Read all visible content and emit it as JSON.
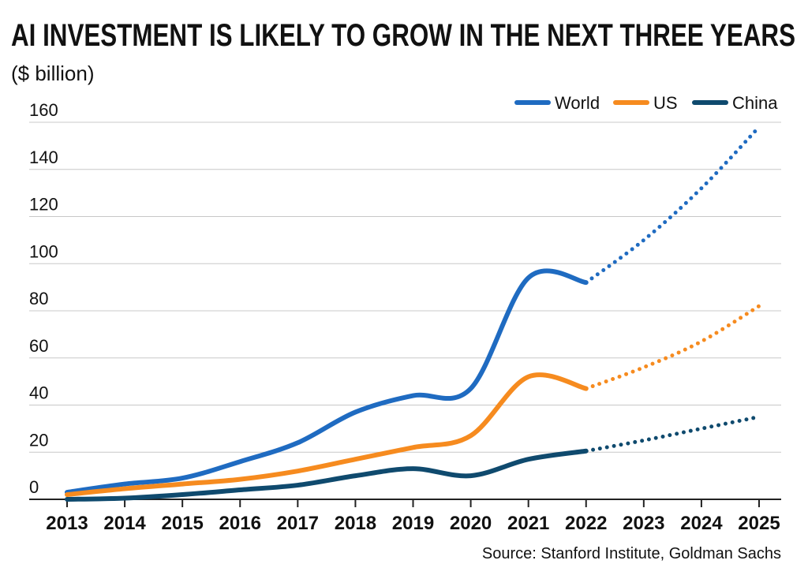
{
  "chart_data": {
    "type": "line",
    "title": "AI INVESTMENT IS LIKELY TO GROW IN THE NEXT THREE YEARS",
    "subtitle": "($ billion)",
    "source": "Source: Stanford Institute, Goldman Sachs",
    "x": [
      2013,
      2014,
      2015,
      2016,
      2017,
      2018,
      2019,
      2020,
      2021,
      2022,
      2023,
      2024,
      2025
    ],
    "xlim": [
      2013,
      2025
    ],
    "xticks": [
      2013,
      2014,
      2015,
      2016,
      2017,
      2018,
      2019,
      2020,
      2021,
      2022,
      2023,
      2024,
      2025
    ],
    "ylim": [
      0,
      160
    ],
    "yticks": [
      0,
      20,
      40,
      60,
      80,
      100,
      120,
      140,
      160
    ],
    "grid": true,
    "legend": "top-right",
    "projection_start": 2022,
    "series": [
      {
        "name": "World",
        "color": "#1f6bc1",
        "values": [
          3,
          6.5,
          9,
          16,
          24,
          37,
          44,
          47,
          94,
          92,
          110,
          132,
          158
        ]
      },
      {
        "name": "US",
        "color": "#f68b1f",
        "values": [
          2,
          4.5,
          6.5,
          8.5,
          12,
          17,
          22,
          27,
          52,
          47,
          56,
          67,
          82
        ]
      },
      {
        "name": "China",
        "color": "#0f4a6e",
        "values": [
          0,
          0.5,
          2,
          4,
          6,
          10,
          13,
          10,
          17,
          20.5,
          25,
          30,
          35
        ]
      }
    ]
  }
}
